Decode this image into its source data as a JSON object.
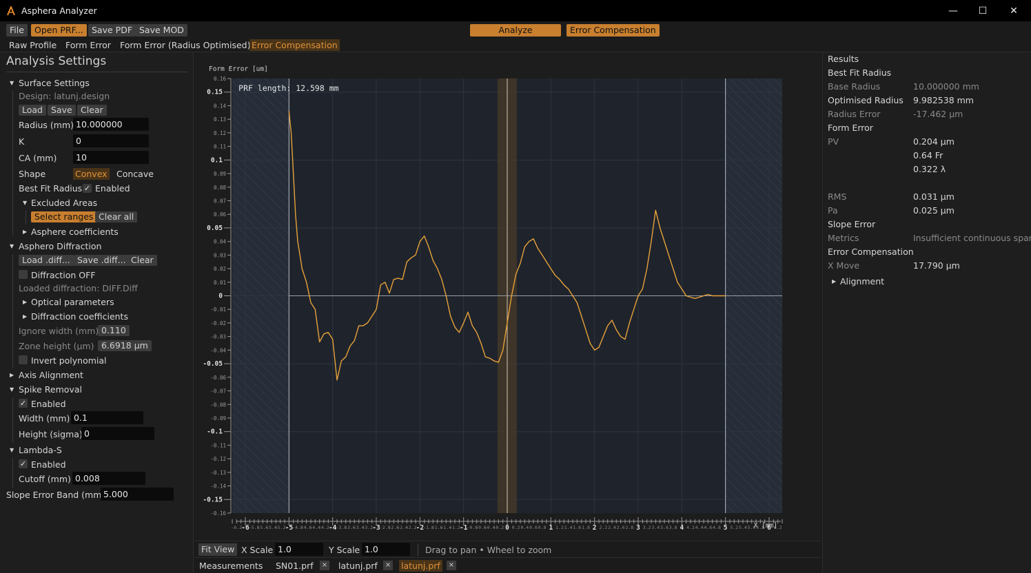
{
  "window": {
    "title": "Asphera Analyzer",
    "minimize_glyph": "—",
    "maximize_glyph": "☐",
    "close_glyph": "✕"
  },
  "toolbar": {
    "file": "File",
    "open_prf": "Open PRF...",
    "save_pdf": "Save PDF",
    "save_mod": "Save MOD",
    "analyze": "Analyze",
    "error_compensation": "Error Compensation"
  },
  "tabs": [
    "Raw Profile",
    "Form Error",
    "Form Error (Radius Optimised)",
    "Error Compensation"
  ],
  "left": {
    "heading": "Analysis Settings",
    "surface_settings": "Surface Settings",
    "design": "Design: latunj.design",
    "load": "Load",
    "save": "Save",
    "clear": "Clear",
    "radius_label": "Radius (mm)",
    "radius_value": "10.000000",
    "k_label": "K",
    "k_value": "0",
    "ca_label": "CA (mm)",
    "ca_value": "10",
    "shape_label": "Shape",
    "shape_convex": "Convex",
    "shape_concave": "Concave",
    "best_fit_label": "Best Fit Radius",
    "best_fit_enabled": "Enabled",
    "excluded_areas": "Excluded Areas",
    "select_ranges": "Select ranges",
    "clear_all": "Clear all",
    "asphere_coeffs": "Asphere coefficients",
    "asphero_diffraction": "Asphero Diffraction",
    "load_diff": "Load .diff...",
    "save_diff": "Save .diff...",
    "clear_diff": "Clear",
    "diffraction_off": "Diffraction OFF",
    "loaded_diffraction": "Loaded diffraction: DIFF.Diff",
    "optical_parameters": "Optical parameters",
    "diffraction_coefficients": "Diffraction coefficients",
    "ignore_width_label": "Ignore width (mm)",
    "ignore_width_value": "0.110",
    "zone_height_label": "Zone height (μm)",
    "zone_height_value": "6.6918 μm",
    "invert_polynomial": "Invert polynomial",
    "axis_alignment": "Axis Alignment",
    "spike_removal": "Spike Removal",
    "spike_enabled": "Enabled",
    "width_label": "Width (mm)",
    "width_value": "0.1",
    "height_label": "Height (sigma)",
    "height_value": "0",
    "lambda_s": "Lambda-S",
    "lambda_enabled": "Enabled",
    "cutoff_label": "Cutoff (mm)",
    "cutoff_value": "0.008",
    "slope_band_label": "Slope Error Band (mm)",
    "slope_band_value": "5.000",
    "check_glyph": "✓",
    "tri_open": "▼",
    "tri_closed": "▶"
  },
  "right": {
    "results": "Results",
    "best_fit_radius": "Best Fit Radius",
    "base_radius_label": "Base Radius",
    "base_radius_value": "10.000000 mm",
    "optimised_radius_label": "Optimised Radius",
    "optimised_radius_value": "9.982538 mm",
    "radius_error_label": "Radius Error",
    "radius_error_value": "-17.462 μm",
    "form_error": "Form Error",
    "pv_label": "PV",
    "pv_um": "0.204 μm",
    "pv_fr": "0.64 Fr",
    "pv_lambda": "0.322 λ",
    "rms_label": "RMS",
    "rms_value": "0.031 μm",
    "pa_label": "Pa",
    "pa_value": "0.025 μm",
    "slope_error": "Slope Error",
    "metrics_label": "Metrics",
    "metrics_value": "Insufficient continuous span",
    "error_compensation": "Error Compensation",
    "xmove_label": "X Move",
    "xmove_value": "17.790 μm",
    "alignment": "Alignment"
  },
  "plot": {
    "y_title": "Form Error [um]",
    "x_title": "X [mm]",
    "annotation": "PRF length: 12.598 mm",
    "y_ticks": [
      "0.16",
      "0.15",
      "0.14",
      "0.13",
      "0.12",
      "0.11",
      "0.1",
      "0.09",
      "0.08",
      "0.07",
      "0.06",
      "0.05",
      "0.04",
      "0.03",
      "0.02",
      "0.01",
      "0",
      "-0.01",
      "-0.02",
      "-0.03",
      "-0.04",
      "-0.05",
      "-0.06",
      "-0.07",
      "-0.08",
      "-0.09",
      "-0.1",
      "-0.11",
      "-0.12",
      "-0.13",
      "-0.14",
      "-0.15",
      "-0.16"
    ],
    "x_major_ticks": [
      "-6",
      "-5",
      "-4",
      "-3",
      "-2",
      "-1",
      "0",
      "1",
      "2",
      "3",
      "4",
      "5",
      "6"
    ],
    "x_minor_ticks": [
      "-6.2",
      "-5.8",
      "-5.6",
      "-5.4",
      "-5.2",
      "-4.8",
      "-4.6",
      "-4.4",
      "-4.2",
      "-3.8",
      "-3.6",
      "-3.4",
      "-3.2",
      "-2.8",
      "-2.6",
      "-2.4",
      "-2.2",
      "-1.8",
      "-1.6",
      "-1.4",
      "-1.2",
      "-0.8",
      "-0.6",
      "-0.4",
      "-0.2",
      "0.2",
      "0.4",
      "0.6",
      "0.8",
      "1.2",
      "1.4",
      "1.6",
      "1.8",
      "2.2",
      "2.4",
      "2.6",
      "2.8",
      "3.2",
      "3.4",
      "3.6",
      "3.8",
      "4.2",
      "4.4",
      "4.6",
      "4.8",
      "5.2",
      "5.4",
      "5.6",
      "5.8",
      "6.2"
    ],
    "line_color": "#e8a23a",
    "accent_color": "#c87f2e"
  },
  "chart_data": {
    "type": "line",
    "title": "",
    "xlabel": "X [mm]",
    "ylabel": "Form Error [um]",
    "xlim": [
      -6.3,
      6.3
    ],
    "ylim": [
      -0.16,
      0.16
    ],
    "grid": true,
    "excluded_regions": [
      [
        -6.3,
        -5.0
      ],
      [
        5.0,
        6.3
      ]
    ],
    "center_band": [
      -0.22,
      0.22
    ],
    "series": [
      {
        "x": [
          -5.0,
          -4.95,
          -4.9,
          -4.85,
          -4.8,
          -4.75,
          -4.7,
          -4.6,
          -4.5,
          -4.4,
          -4.3,
          -4.2,
          -4.1,
          -4.0,
          -3.9,
          -3.8,
          -3.7,
          -3.6,
          -3.5,
          -3.4,
          -3.3,
          -3.2,
          -3.1,
          -3.0,
          -2.9,
          -2.8,
          -2.7,
          -2.6,
          -2.5,
          -2.4,
          -2.3,
          -2.2,
          -2.1,
          -2.0,
          -1.9,
          -1.8,
          -1.7,
          -1.6,
          -1.5,
          -1.4,
          -1.3,
          -1.2,
          -1.1,
          -1.0,
          -0.9,
          -0.8,
          -0.7,
          -0.6,
          -0.5,
          -0.4,
          -0.3,
          -0.2,
          -0.1,
          0.0,
          0.1,
          0.2,
          0.3,
          0.4,
          0.5,
          0.6,
          0.7,
          0.8,
          0.9,
          1.0,
          1.1,
          1.2,
          1.3,
          1.4,
          1.5,
          1.6,
          1.7,
          1.8,
          1.9,
          2.0,
          2.1,
          2.2,
          2.3,
          2.4,
          2.5,
          2.6,
          2.7,
          2.8,
          2.9,
          3.0,
          3.1,
          3.2,
          3.3,
          3.4,
          3.5,
          3.6,
          3.7,
          3.8,
          3.9,
          4.0,
          4.1,
          4.2,
          4.3,
          4.4,
          4.5,
          4.6,
          4.7,
          4.8,
          4.85,
          4.9,
          4.95,
          5.0
        ],
        "y": [
          0.136,
          0.12,
          0.09,
          0.06,
          0.04,
          0.03,
          0.02,
          0.01,
          -0.005,
          -0.01,
          -0.034,
          -0.028,
          -0.027,
          -0.032,
          -0.062,
          -0.048,
          -0.045,
          -0.037,
          -0.033,
          -0.022,
          -0.022,
          -0.02,
          -0.015,
          -0.01,
          0.008,
          0.01,
          0.002,
          0.012,
          0.013,
          0.012,
          0.025,
          0.028,
          0.03,
          0.04,
          0.044,
          0.036,
          0.026,
          0.02,
          0.012,
          0.0,
          -0.015,
          -0.023,
          -0.027,
          -0.02,
          -0.012,
          -0.022,
          -0.027,
          -0.035,
          -0.045,
          -0.046,
          -0.048,
          -0.049,
          -0.04,
          -0.02,
          0.0,
          0.016,
          0.024,
          0.036,
          0.04,
          0.042,
          0.035,
          0.03,
          0.025,
          0.02,
          0.015,
          0.012,
          0.008,
          0.005,
          0.0,
          -0.005,
          -0.015,
          -0.025,
          -0.035,
          -0.04,
          -0.038,
          -0.03,
          -0.022,
          -0.018,
          -0.025,
          -0.03,
          -0.032,
          -0.02,
          -0.01,
          0.0,
          0.005,
          0.02,
          0.04,
          0.063,
          0.05,
          0.04,
          0.03,
          0.02,
          0.01,
          0.005,
          0.0,
          -0.001,
          -0.002,
          -0.001,
          0.0,
          0.001,
          0.0,
          0.0,
          0.0,
          0.0,
          0.0,
          0.0
        ]
      }
    ]
  },
  "bottom": {
    "fit_view": "Fit View",
    "x_scale_label": "X Scale",
    "x_scale_value": "1.0",
    "y_scale_label": "Y Scale",
    "y_scale_value": "1.0",
    "hint": "Drag to pan • Wheel to zoom"
  },
  "filetabs": {
    "measurements": "Measurements",
    "files": [
      "SN01.prf",
      "latunj.prf",
      "latunj.prf"
    ],
    "close_glyph": "×"
  }
}
